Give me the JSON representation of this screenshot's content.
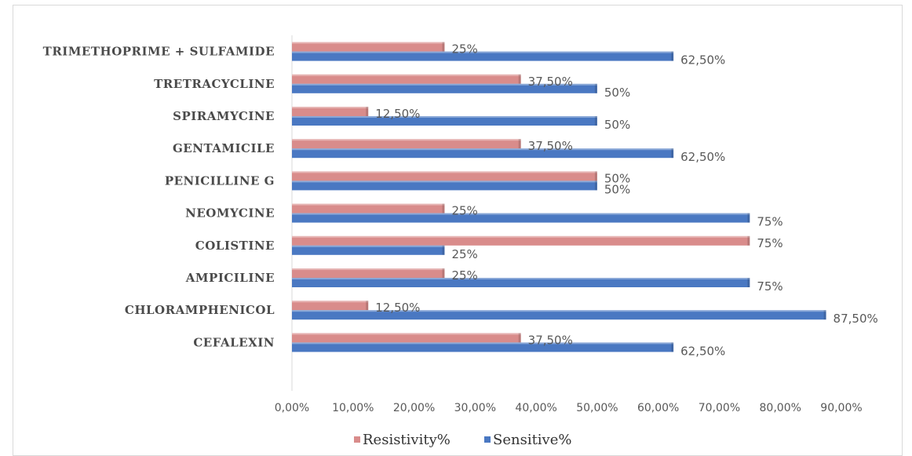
{
  "chart_data": {
    "type": "bar",
    "orientation": "horizontal",
    "categories": [
      "CEFALEXIN",
      "CHLORAMPHENICOL",
      "AMPICILINE",
      "COLISTINE",
      "NEOMYCINE",
      "PENICILLINE G",
      "GENTAMICILE",
      "SPIRAMYCINE",
      "TRETRACYCLINE",
      "TRIMETHOPRIME + SULFAMIDE"
    ],
    "series": [
      {
        "name": "Resistivity%",
        "color": "#d98c8b",
        "values": [
          37.5,
          12.5,
          25,
          75,
          25,
          50,
          37.5,
          12.5,
          37.5,
          25
        ],
        "labels": [
          "37,50%",
          "12,50%",
          "25%",
          "75%",
          "25%",
          "50%",
          "37,50%",
          "12,50%",
          "37,50%",
          "25%"
        ]
      },
      {
        "name": "Sensitive%",
        "color": "#4a78c2",
        "values": [
          62.5,
          87.5,
          75,
          25,
          75,
          50,
          62.5,
          50,
          50,
          62.5
        ],
        "labels": [
          "62,50%",
          "87,50%",
          "75%",
          "25%",
          "75%",
          "50%",
          "62,50%",
          "50%",
          "50%",
          "62,50%"
        ]
      }
    ],
    "xlim": [
      0,
      90
    ],
    "xticks": [
      "0,00%",
      "10,00%",
      "20,00%",
      "30,00%",
      "40,00%",
      "50,00%",
      "60,00%",
      "70,00%",
      "80,00%",
      "90,00%"
    ],
    "title": "",
    "xlabel": "",
    "ylabel": "",
    "grid": false,
    "legend_position": "bottom"
  }
}
